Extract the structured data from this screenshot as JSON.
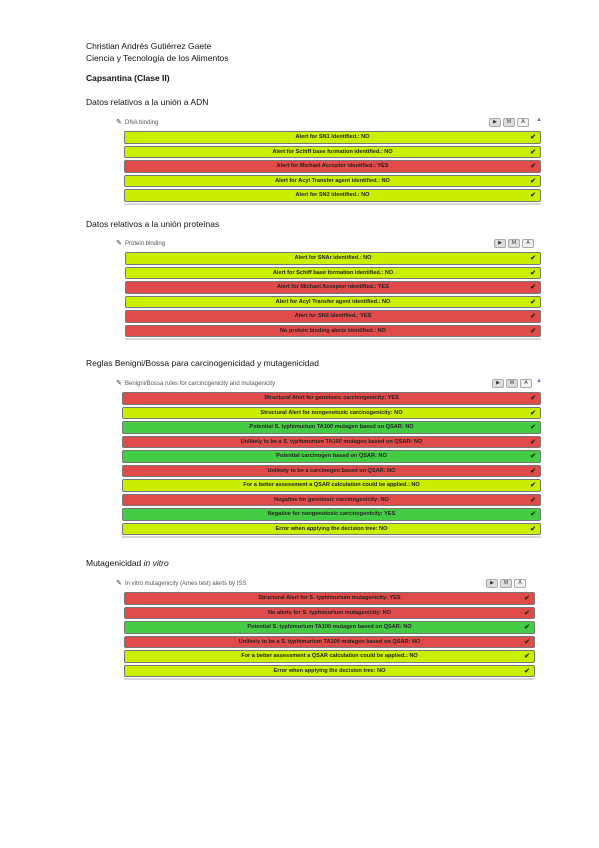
{
  "author": {
    "name": "Christian Andrés Gutiérrez Gaete",
    "program": "Ciencia y Tecnología de los Alimentos"
  },
  "title": "Capsantina (Clase II)",
  "colors": {
    "yellow": "#ccee00",
    "red": "#e04a4a",
    "green": "#44cc44"
  },
  "icons": {
    "pin": "pushpin-icon",
    "check": "checkmark-icon",
    "play": "play-icon",
    "stop": "stop-icon",
    "text": "text-icon"
  },
  "sections": [
    {
      "heading": "Datos relativos a la unión a ADN",
      "panel_title": "DNA binding",
      "controls": [
        "▶",
        "M",
        "A"
      ],
      "rows": [
        {
          "text": "Alert for SN1 identified.: NO",
          "color": "yellow"
        },
        {
          "text": "Alert for Schiff base formation identified.: NO",
          "color": "yellow"
        },
        {
          "text": "Alert for Michael Acceptor identified.: YES",
          "color": "red"
        },
        {
          "text": "Alert for Acyl Transfer agent identified.: NO",
          "color": "yellow"
        },
        {
          "text": "Alert for SN2 identified.: NO",
          "color": "yellow"
        }
      ]
    },
    {
      "heading": "Datos relativos a la unión proteínas",
      "panel_title": "Protein binding",
      "controls": [
        "▶",
        "M",
        "A"
      ],
      "rows": [
        {
          "text": "Alert for SNAr identified.: NO",
          "color": "yellow"
        },
        {
          "text": "Alert for Schiff base formation identified.: NO",
          "color": "yellow"
        },
        {
          "text": "Alert for Michael Acceptor identified.: YES",
          "color": "red"
        },
        {
          "text": "Alert for Acyl Transfer agent identified.: NO",
          "color": "yellow"
        },
        {
          "text": "Alert for SN2 identified.: YES",
          "color": "red"
        },
        {
          "text": "No protein binding alerts identified.: NO",
          "color": "red"
        }
      ]
    },
    {
      "heading": "Reglas Benigni/Bossa para carcinogenicidad y mutagenicidad",
      "panel_title": "Benigni/Bossa rules for carcinogenicity and mutagenicity",
      "controls": [
        "▶",
        "M",
        "A"
      ],
      "rows": [
        {
          "text": "Structural Alert for genotoxic carcinogenicity: YES",
          "color": "red"
        },
        {
          "text": "Structural Alert for nongenotoxic carcinogenicity: NO",
          "color": "yellow"
        },
        {
          "text": "Potential S. typhimurium TA100 mutagen based on QSAR: NO",
          "color": "green"
        },
        {
          "text": "Unlikely to be a S. typhimurium TA100 mutagen based on QSAR: NO",
          "color": "red"
        },
        {
          "text": "Potential carcinogen based on QSAR: NO",
          "color": "green"
        },
        {
          "text": "Unlikely to be a carcinogen based on QSAR: NO",
          "color": "red"
        },
        {
          "text": "For a better assessment a QSAR calculation could be applied.: NO",
          "color": "yellow"
        },
        {
          "text": "Negative for genotoxic carcinogenicity: NO",
          "color": "red"
        },
        {
          "text": "Negative for nongenotoxic carcinogenicity: YES",
          "color": "green"
        },
        {
          "text": "Error when applying the decision tree: NO",
          "color": "yellow"
        }
      ]
    },
    {
      "heading": "Mutagenicidad ",
      "heading_italic": "in vitro",
      "panel_title": "In vitro mutagenicity (Ames test) alerts by ISS",
      "controls": [
        "▶",
        "M",
        "A"
      ],
      "rows": [
        {
          "text": "Structural Alert for S. typhimurium mutagenicity: YES",
          "color": "red"
        },
        {
          "text": "No alerts for S. typhimurium mutagenicity: NO",
          "color": "red"
        },
        {
          "text": "Potential S. typhimurium TA100 mutagen based on QSAR: NO",
          "color": "green"
        },
        {
          "text": "Unlikely to be a S. typhimurium TA100 mutagen based on QSAR: NO",
          "color": "red"
        },
        {
          "text": "For a better assessment a QSAR calculation could be applied.: NO",
          "color": "yellow"
        },
        {
          "text": "Error when applying the decision tree: NO",
          "color": "yellow"
        }
      ]
    }
  ]
}
